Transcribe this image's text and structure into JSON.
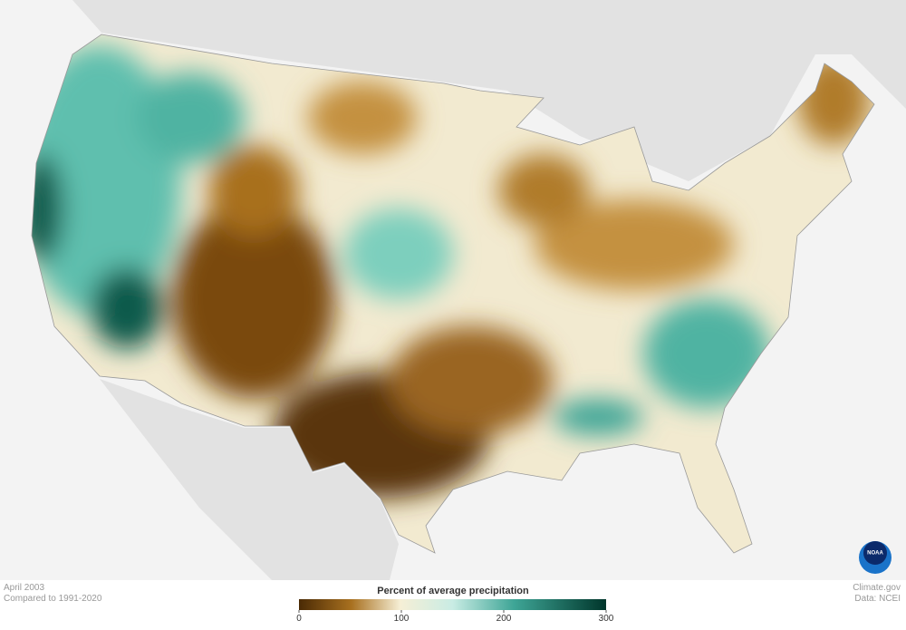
{
  "map": {
    "date": "April 2003",
    "baseline": "Compared to 1991-2020"
  },
  "legend": {
    "title": "Percent of average precipitation",
    "range": [
      0,
      300
    ],
    "ticks": [
      0,
      100,
      200,
      300
    ]
  },
  "credits": {
    "site": "Climate.gov",
    "source": "Data: NCEI",
    "logo": "NOAA"
  }
}
